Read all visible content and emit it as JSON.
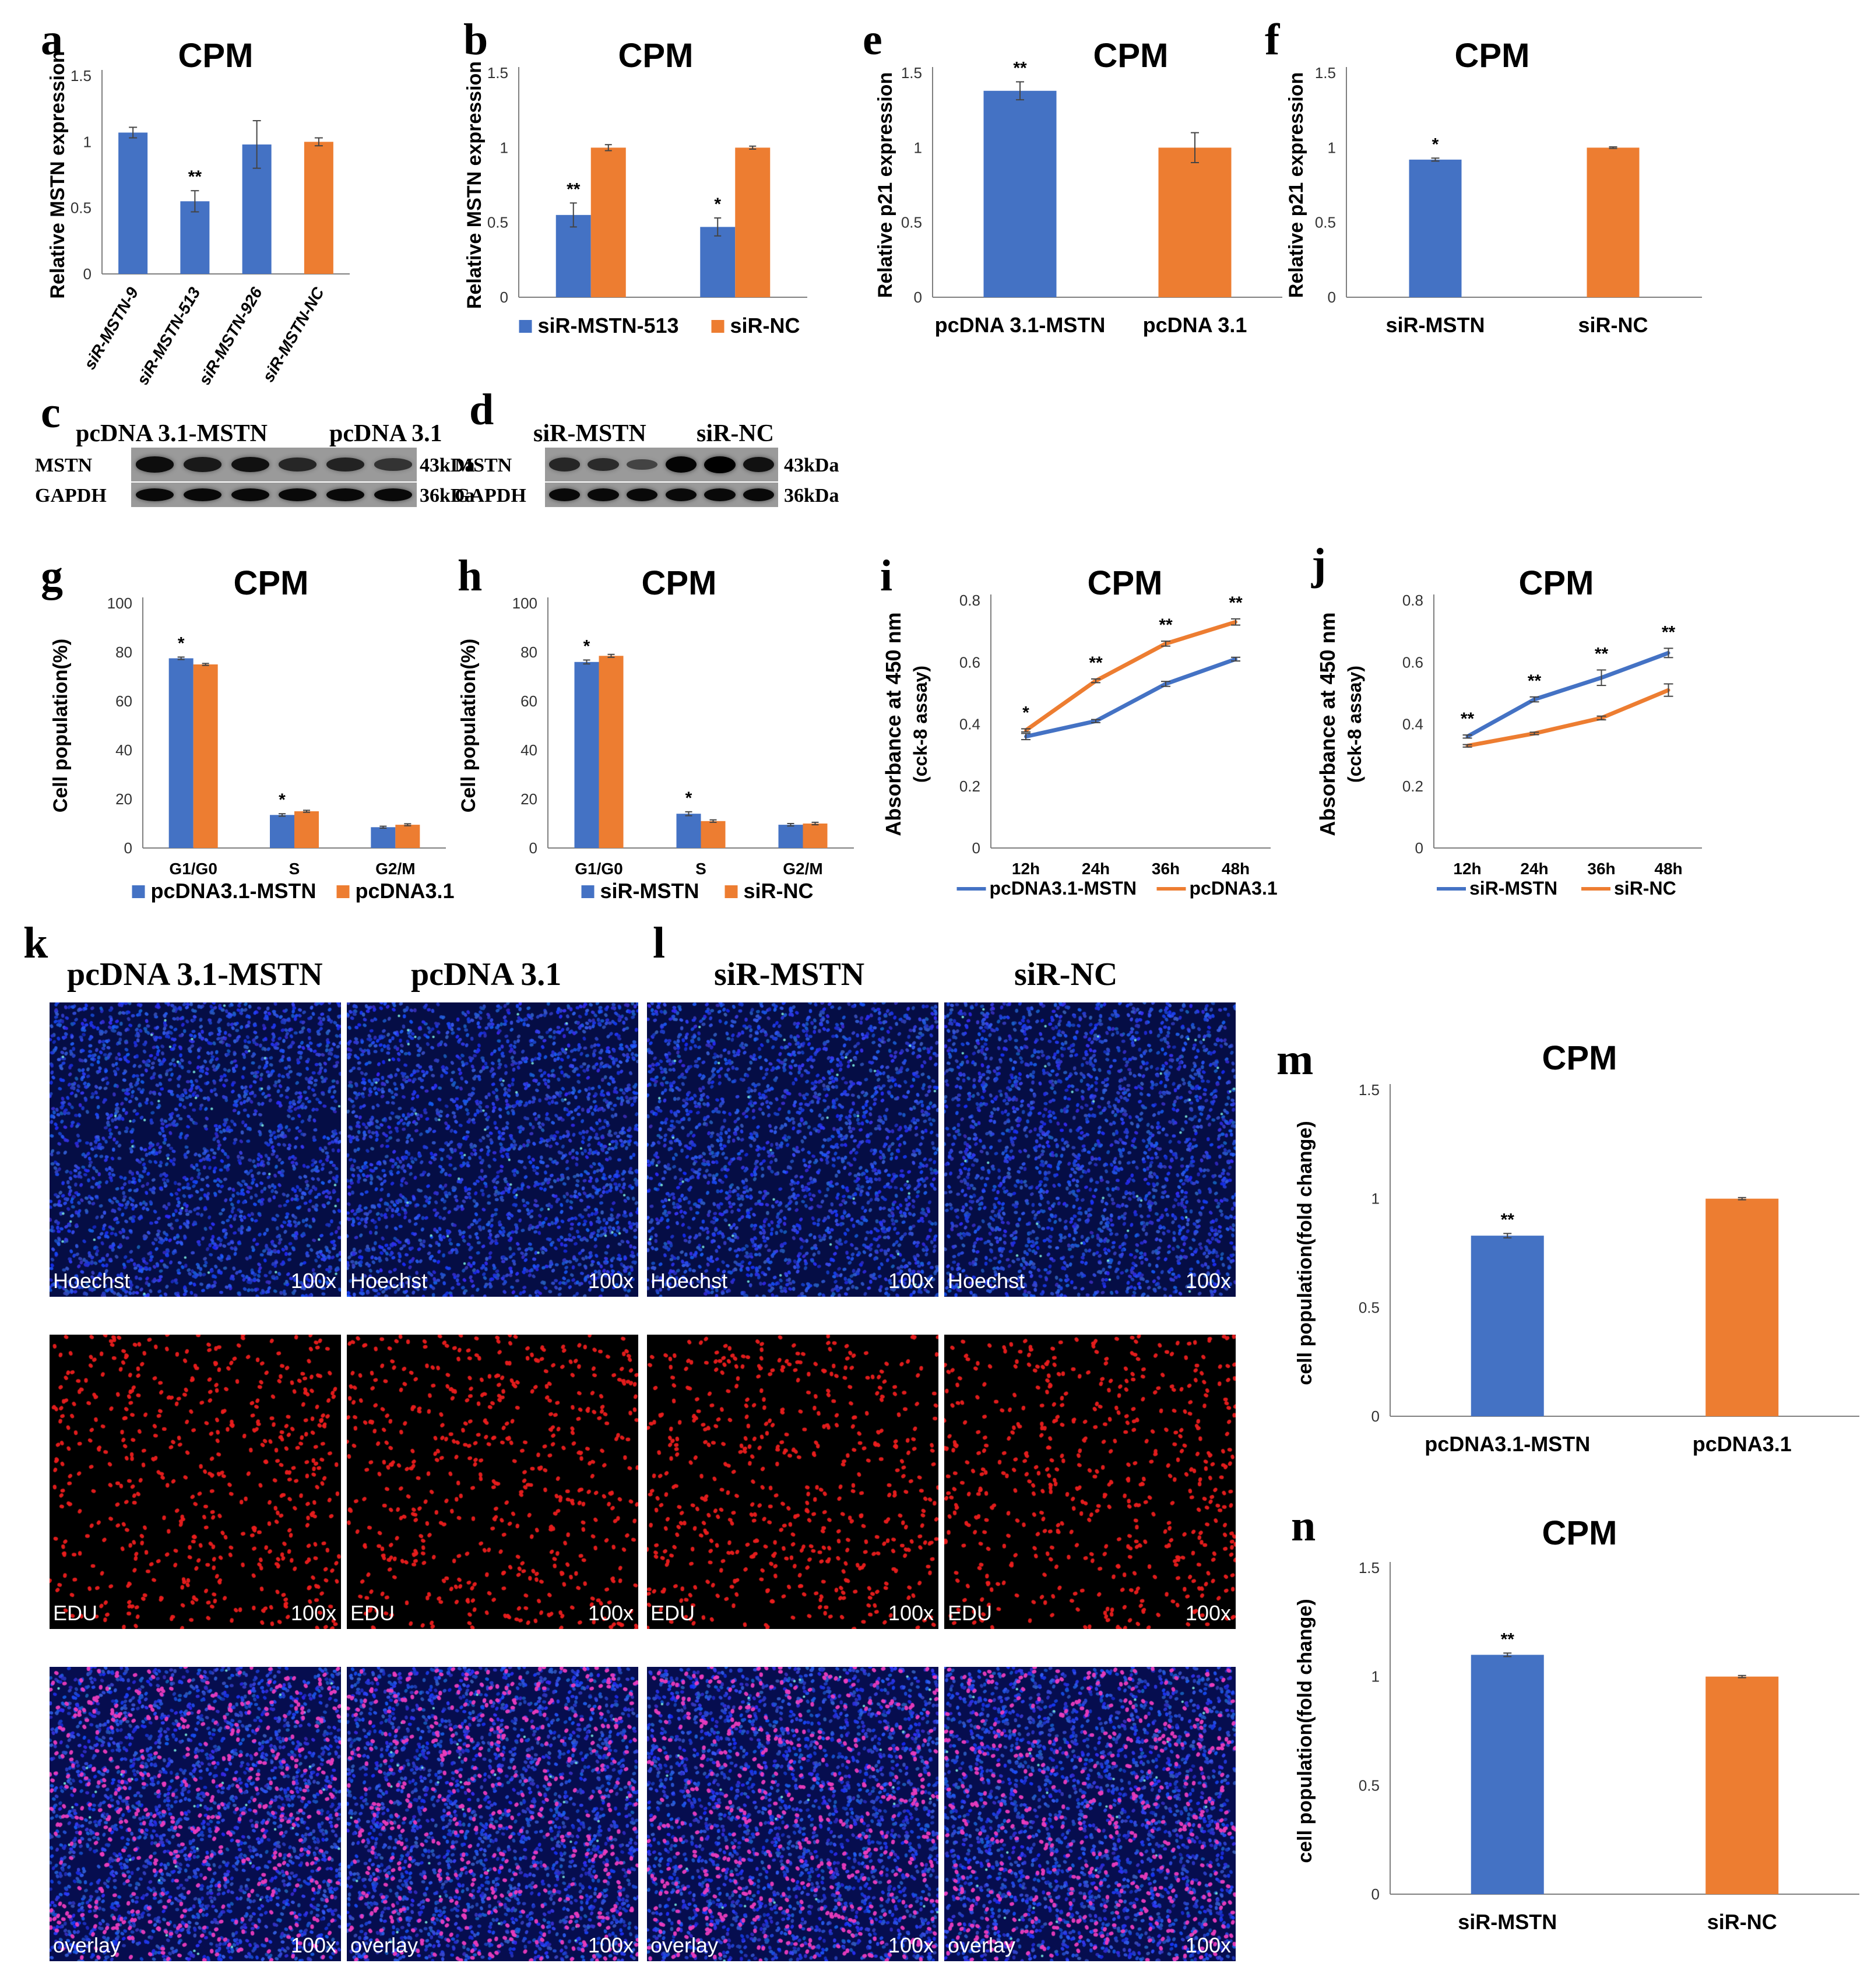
{
  "colors": {
    "blue": "#4472C4",
    "orange": "#ED7D31",
    "hoechst": "#1a2fd6",
    "edu": "#e0201e"
  },
  "panel_letters": {
    "a": "a",
    "b": "b",
    "c": "c",
    "d": "d",
    "e": "e",
    "f": "f",
    "g": "g",
    "h": "h",
    "i": "i",
    "j": "j",
    "k": "k",
    "l": "l",
    "m": "m",
    "n": "n"
  },
  "chart_data": [
    {
      "id": "a",
      "type": "bar",
      "title": "CPM",
      "ylabel": "Relative MSTN expression",
      "ylim": [
        0,
        1.5
      ],
      "yticks": [
        "0",
        "0.5",
        "1",
        "1.5"
      ],
      "ytick_values": [
        0,
        0.5,
        1,
        1.5
      ],
      "categories": [
        "siR-MSTN-9",
        "siR-MSTN-513",
        "siR-MSTN-926",
        "siR-MSTN-NC"
      ],
      "values": [
        1.07,
        0.55,
        0.98,
        1.0
      ],
      "errors": [
        0.04,
        0.08,
        0.18,
        0.03
      ],
      "bar_colors": [
        "blue",
        "blue",
        "blue",
        "orange"
      ],
      "annotations": [
        "",
        "**",
        "",
        ""
      ],
      "rotated_labels": true
    },
    {
      "id": "b",
      "type": "bar",
      "title": "CPM",
      "ylabel": "Relative MSTN expression",
      "ylim": [
        0,
        1.5
      ],
      "yticks": [
        "0",
        "0.5",
        "1",
        "1.5"
      ],
      "ytick_values": [
        0,
        0.5,
        1,
        1.5
      ],
      "groups": 2,
      "series": [
        {
          "name": "siR-MSTN-513",
          "color": "blue",
          "values": [
            0.55,
            0.47
          ],
          "errors": [
            0.08,
            0.06
          ],
          "annotations": [
            "**",
            "*"
          ]
        },
        {
          "name": "siR-NC",
          "color": "orange",
          "values": [
            1.0,
            1.0
          ],
          "errors": [
            0.02,
            0.01
          ],
          "annotations": [
            "",
            ""
          ]
        }
      ]
    },
    {
      "id": "e",
      "type": "bar",
      "title": "CPM",
      "ylabel": "Relative p21 expression",
      "ylim": [
        0,
        1.5
      ],
      "yticks": [
        "0",
        "0.5",
        "1",
        "1.5"
      ],
      "ytick_values": [
        0,
        0.5,
        1,
        1.5
      ],
      "categories": [
        "pcDNA 3.1-MSTN",
        "pcDNA 3.1"
      ],
      "values": [
        1.38,
        1.0
      ],
      "errors": [
        0.06,
        0.1
      ],
      "bar_colors": [
        "blue",
        "orange"
      ],
      "annotations": [
        "**",
        ""
      ]
    },
    {
      "id": "f",
      "type": "bar",
      "title": "CPM",
      "ylabel": "Relative p21 expression",
      "ylim": [
        0,
        1.5
      ],
      "yticks": [
        "0",
        "0.5",
        "1",
        "1.5"
      ],
      "ytick_values": [
        0,
        0.5,
        1,
        1.5
      ],
      "categories": [
        "siR-MSTN",
        "siR-NC"
      ],
      "values": [
        0.92,
        1.0
      ],
      "errors": [
        0.01,
        0.005
      ],
      "bar_colors": [
        "blue",
        "orange"
      ],
      "annotations": [
        "*",
        ""
      ]
    },
    {
      "id": "g",
      "type": "bar",
      "title": "CPM",
      "ylabel": "Cell population(%)",
      "ylim": [
        0,
        100
      ],
      "yticks": [
        "0",
        "20",
        "40",
        "60",
        "80",
        "100"
      ],
      "ytick_values": [
        0,
        20,
        40,
        60,
        80,
        100
      ],
      "categories": [
        "G1/G0",
        "S",
        "G2/M"
      ],
      "series": [
        {
          "name": "pcDNA3.1-MSTN",
          "color": "blue",
          "values": [
            77.5,
            13.5,
            8.5
          ],
          "errors": [
            0.5,
            0.5,
            0.4
          ],
          "annotations": [
            "*",
            "*",
            ""
          ]
        },
        {
          "name": "pcDNA3.1",
          "color": "orange",
          "values": [
            75,
            15,
            9.5
          ],
          "errors": [
            0.4,
            0.4,
            0.4
          ],
          "annotations": [
            "",
            "",
            ""
          ]
        }
      ]
    },
    {
      "id": "h",
      "type": "bar",
      "title": "CPM",
      "ylabel": "Cell population(%)",
      "ylim": [
        0,
        100
      ],
      "yticks": [
        "0",
        "20",
        "40",
        "60",
        "80",
        "100"
      ],
      "ytick_values": [
        0,
        20,
        40,
        60,
        80,
        100
      ],
      "categories": [
        "G1/G0",
        "S",
        "G2/M"
      ],
      "series": [
        {
          "name": "siR-MSTN",
          "color": "blue",
          "values": [
            76,
            14,
            9.5
          ],
          "errors": [
            0.8,
            0.8,
            0.5
          ],
          "annotations": [
            "*",
            "*",
            ""
          ]
        },
        {
          "name": "siR-NC",
          "color": "orange",
          "values": [
            78.5,
            11,
            10
          ],
          "errors": [
            0.6,
            0.5,
            0.5
          ],
          "annotations": [
            "",
            "",
            ""
          ]
        }
      ]
    },
    {
      "id": "i",
      "type": "line",
      "title": "CPM",
      "ylabel": "Absorbance at 450 nm",
      "ylabel2": "(cck-8 assay)",
      "ylim": [
        0,
        0.8
      ],
      "yticks": [
        "0",
        "0.2",
        "0.4",
        "0.6",
        "0.8"
      ],
      "ytick_values": [
        0,
        0.2,
        0.4,
        0.6,
        0.8
      ],
      "x": [
        "12h",
        "24h",
        "36h",
        "48h"
      ],
      "annotations": [
        "*",
        "**",
        "**",
        "**"
      ],
      "series": [
        {
          "name": "pcDNA3.1-MSTN",
          "color": "blue",
          "values": [
            0.36,
            0.41,
            0.53,
            0.61
          ],
          "errors": [
            0.01,
            0.005,
            0.008,
            0.006
          ]
        },
        {
          "name": "pcDNA3.1",
          "color": "orange",
          "values": [
            0.38,
            0.54,
            0.66,
            0.73
          ],
          "errors": [
            0.005,
            0.006,
            0.008,
            0.01
          ]
        }
      ]
    },
    {
      "id": "j",
      "type": "line",
      "title": "CPM",
      "ylabel": "Absorbance at 450 nm",
      "ylabel2": "(cck-8 assay)",
      "ylim": [
        0,
        0.8
      ],
      "yticks": [
        "0",
        "0.2",
        "0.4",
        "0.6",
        "0.8"
      ],
      "ytick_values": [
        0,
        0.2,
        0.4,
        0.6,
        0.8
      ],
      "x": [
        "12h",
        "24h",
        "36h",
        "48h"
      ],
      "annotations": [
        "**",
        "**",
        "**",
        "**"
      ],
      "series": [
        {
          "name": "siR-MSTN",
          "color": "blue",
          "values": [
            0.36,
            0.48,
            0.55,
            0.63
          ],
          "errors": [
            0.005,
            0.008,
            0.025,
            0.015
          ]
        },
        {
          "name": "siR-NC",
          "color": "orange",
          "values": [
            0.33,
            0.37,
            0.42,
            0.51
          ],
          "errors": [
            0.004,
            0.004,
            0.006,
            0.02
          ]
        }
      ]
    },
    {
      "id": "m",
      "type": "bar",
      "title": "CPM",
      "ylabel": "cell population(fold change)",
      "ylim": [
        0,
        1.5
      ],
      "yticks": [
        "0",
        "0.5",
        "1",
        "1.5"
      ],
      "ytick_values": [
        0,
        0.5,
        1,
        1.5
      ],
      "categories": [
        "pcDNA3.1-MSTN",
        "pcDNA3.1"
      ],
      "values": [
        0.83,
        1.0
      ],
      "errors": [
        0.01,
        0.005
      ],
      "bar_colors": [
        "blue",
        "orange"
      ],
      "annotations": [
        "**",
        ""
      ]
    },
    {
      "id": "n",
      "type": "bar",
      "title": "CPM",
      "ylabel": "cell population(fold change)",
      "ylim": [
        0,
        1.5
      ],
      "yticks": [
        "0",
        "0.5",
        "1",
        "1.5"
      ],
      "ytick_values": [
        0,
        0.5,
        1,
        1.5
      ],
      "categories": [
        "siR-MSTN",
        "siR-NC"
      ],
      "values": [
        1.1,
        1.0
      ],
      "errors": [
        0.008,
        0.005
      ],
      "bar_colors": [
        "blue",
        "orange"
      ],
      "annotations": [
        "**",
        ""
      ]
    }
  ],
  "blot_c": {
    "head1": "pcDNA 3.1-MSTN",
    "head2": "pcDNA 3.1",
    "row1": "MSTN",
    "row2": "GAPDH",
    "kda1": "43kDa",
    "kda2": "36kDa",
    "mstn_intensity": [
      0.85,
      0.7,
      0.8,
      0.55,
      0.6,
      0.4
    ],
    "gapdh_intensity": [
      0.9,
      0.9,
      0.9,
      0.9,
      0.9,
      0.9
    ]
  },
  "blot_d": {
    "head1": "siR-MSTN",
    "head2": "siR-NC",
    "row1": "MSTN",
    "row2": "GAPDH",
    "kda1": "43kDa",
    "kda2": "36kDa",
    "mstn_intensity": [
      0.55,
      0.5,
      0.2,
      0.95,
      1.0,
      0.8
    ],
    "gapdh_intensity": [
      0.9,
      0.9,
      0.9,
      0.9,
      0.9,
      0.9
    ]
  },
  "micro_k": {
    "col1": "pcDNA 3.1-MSTN",
    "col2": "pcDNA 3.1"
  },
  "micro_l": {
    "col1": "siR-MSTN",
    "col2": "siR-NC"
  },
  "micro_labels": {
    "hoechst": "Hoechst",
    "edu": "EDU",
    "overlay": "overlay",
    "mag": "100x"
  }
}
